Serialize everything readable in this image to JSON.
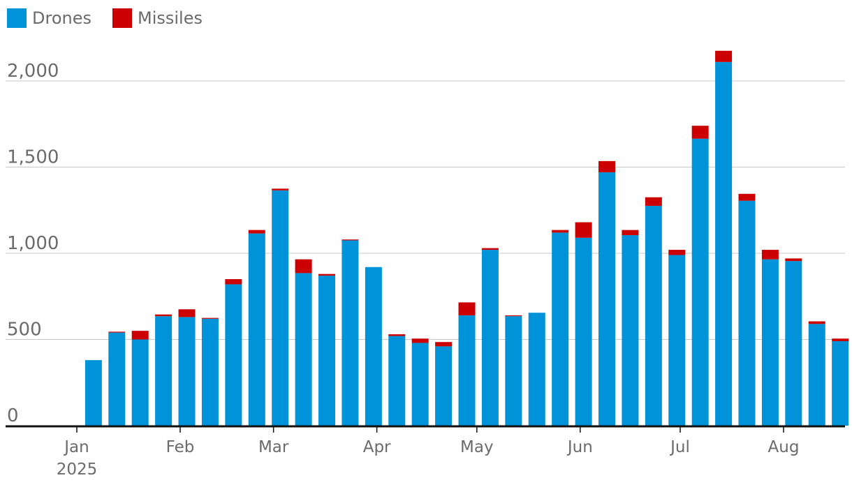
{
  "chart_data": {
    "type": "bar",
    "stacked": true,
    "title": "",
    "xlabel": "",
    "ylabel": "",
    "ylim": [
      0,
      2200
    ],
    "yticks": [
      0,
      500,
      1000,
      1500,
      2000
    ],
    "ytick_labels": [
      "0",
      "500",
      "1,000",
      "1,500",
      "2,000"
    ],
    "grid": true,
    "legend_position": "top-left",
    "x_start_date": "2025-01-01",
    "x_end_date": "2025-08-25",
    "x_month_ticks": [
      {
        "date": "2025-01-01",
        "label": "Jan",
        "sublabel": "2025"
      },
      {
        "date": "2025-02-01",
        "label": "Feb",
        "sublabel": ""
      },
      {
        "date": "2025-03-01",
        "label": "Mar",
        "sublabel": ""
      },
      {
        "date": "2025-04-01",
        "label": "Apr",
        "sublabel": ""
      },
      {
        "date": "2025-05-01",
        "label": "May",
        "sublabel": ""
      },
      {
        "date": "2025-06-01",
        "label": "Jun",
        "sublabel": ""
      },
      {
        "date": "2025-07-01",
        "label": "Jul",
        "sublabel": ""
      },
      {
        "date": "2025-08-01",
        "label": "Aug",
        "sublabel": ""
      }
    ],
    "categories": [
      "2025-01-06",
      "2025-01-13",
      "2025-01-20",
      "2025-01-27",
      "2025-02-03",
      "2025-02-10",
      "2025-02-17",
      "2025-02-24",
      "2025-03-03",
      "2025-03-10",
      "2025-03-17",
      "2025-03-24",
      "2025-03-31",
      "2025-04-07",
      "2025-04-14",
      "2025-04-21",
      "2025-04-28",
      "2025-05-05",
      "2025-05-12",
      "2025-05-19",
      "2025-05-26",
      "2025-06-02",
      "2025-06-09",
      "2025-06-16",
      "2025-06-23",
      "2025-06-30",
      "2025-07-07",
      "2025-07-14",
      "2025-07-21",
      "2025-07-28",
      "2025-08-04",
      "2025-08-11",
      "2025-08-18"
    ],
    "series": [
      {
        "name": "Drones",
        "color": "#0093d9",
        "values": [
          380,
          540,
          500,
          635,
          630,
          620,
          820,
          1115,
          1365,
          885,
          870,
          1075,
          920,
          520,
          480,
          460,
          640,
          1020,
          635,
          655,
          1120,
          1090,
          1470,
          1105,
          1275,
          990,
          1665,
          2110,
          1305,
          965,
          955,
          590,
          490
        ]
      },
      {
        "name": "Missiles",
        "color": "#cc0000",
        "values": [
          0,
          5,
          50,
          10,
          45,
          5,
          30,
          20,
          10,
          80,
          10,
          5,
          0,
          10,
          25,
          25,
          75,
          10,
          5,
          0,
          15,
          90,
          65,
          30,
          50,
          30,
          75,
          65,
          40,
          55,
          15,
          15,
          15
        ]
      }
    ]
  }
}
